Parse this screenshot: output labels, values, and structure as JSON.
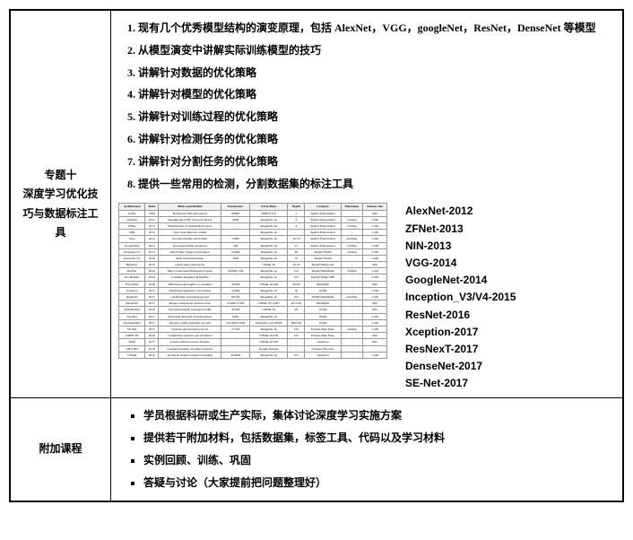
{
  "row1": {
    "leftTitle": "专题十\n深度学习优化技巧与数据标注工具",
    "items": [
      "现有几个优秀模型结构的演变原理，包括 AlexNet，VGG，googleNet，ResNet，DenseNet 等模型",
      "从模型演变中讲解实际训练模型的技巧",
      "讲解针对数据的优化策略",
      "讲解针对模型的优化策略",
      "讲解针对训练过程的优化策略",
      "讲解针对检测任务的优化策略",
      "讲解针对分割任务的优化策略",
      "提供一些常用的检测，分割数据集的标注工具"
    ],
    "miniTable": {
      "headers": [
        "Architecture",
        "Team",
        "Main contribution",
        "Parameters",
        "Error Rate",
        "Depth",
        "Category",
        "Placement",
        "Dataset size"
      ],
      "rows": [
        [
          "LeNet",
          "1998",
          "Backprop CNN introduced",
          "60000",
          "MNIST 0.8",
          "5",
          "Spatial Exploitation",
          "-",
          "60k"
        ],
        [
          "AlexNet",
          "2012",
          "Deep&wide CNN; Dropout; ReLU",
          "60M",
          "ImageNet-1k",
          "8",
          "Spatial Exploitation",
          "1st/Img",
          "1.2M"
        ],
        [
          "ZFNet",
          "2013",
          "Visualization of intermediate layers",
          "-",
          "ImageNet-1k",
          "8",
          "Spatial Exploitation",
          "1st/Img",
          "1.2M"
        ],
        [
          "NIN",
          "2013",
          "New layer mlpconv added",
          "-",
          "ImageNet-1k",
          "-",
          "Spatial Exploitation",
          "-",
          "1.2M"
        ],
        [
          "VGG",
          "2014",
          "Increased depth; small filter",
          "138M",
          "ImageNet-1k",
          "16-19",
          "Spatial Exploitation",
          "2nd/Img",
          "1.2M"
        ],
        [
          "GoogLeNet",
          "2014",
          "Increased Width; Inception",
          "4M",
          "ImageNet-1k",
          "22",
          "Spatial Exploitation",
          "1st/Img",
          "1.2M"
        ],
        [
          "Inception V3",
          "2015",
          "Small filter; better factorization",
          "23.6M",
          "ImageNet-1k",
          "48",
          "Depth+Width",
          "1st/Img",
          "1.2M"
        ],
        [
          "Inception V4",
          "2016",
          "Split transform merge",
          "35M",
          "ImageNet-1k",
          "70",
          "Depth+Width",
          "-",
          "1.2M"
        ],
        [
          "Highway",
          "2015",
          "Gated skip connections",
          "-",
          "CIFAR-10",
          "19-32",
          "Depth+SkipConn",
          "-",
          "60k"
        ],
        [
          "ResNet",
          "2016",
          "Skip Connections;Bottleneck layers",
          "25.6M/1.7M",
          "ImageNet-1k",
          "152",
          "Depth+MultiPath",
          "1st/Img",
          "1.2M"
        ],
        [
          "Inc-ResNet",
          "2016",
          "Combine Inception & ResNet",
          "-",
          "ImageNet-1k",
          "572",
          "Depth+Width+MP",
          "-",
          "1.2M"
        ],
        [
          "FractalNet",
          "2016",
          "Different path lengths; no residual",
          "38.6M",
          "CIFAR-10/100",
          "40-80",
          "MultiPath",
          "-",
          "60k"
        ],
        [
          "Xception",
          "2017",
          "Depthwise separable convolution",
          "22.8M",
          "ImageNet-1k",
          "36",
          "Width",
          "-",
          "1.2M"
        ],
        [
          "ResNeXt",
          "2017",
          "Cardinality; increasing groups",
          "68.1M",
          "ImageNet-1k",
          "101",
          "Width+MultiPath",
          "2nd/Img",
          "1.2M"
        ],
        [
          "DenseNet",
          "2017",
          "Dense connections; feature reuse",
          "25.6M/15.3M",
          "CIFAR-10+/100+",
          "201/100",
          "MultiPath",
          "-",
          "60k"
        ],
        [
          "WideResNet",
          "2016",
          "Decreased depth; increased width",
          "36.5M",
          "CIFAR-10",
          "28",
          "Width",
          "-",
          "60k"
        ],
        [
          "PolyNet",
          "2017",
          "Structural diversity; PolyInception",
          "92M",
          "ImageNet-1k",
          "-",
          "Width",
          "-",
          "1.2M"
        ],
        [
          "PyramidalNet",
          "2017",
          "Increase width gradually per unit",
          "116.4M/27.0M",
          "ImageNet-1k/CIFAR",
          "200/164",
          "Width",
          "-",
          "1.2M"
        ],
        [
          "SE-Net",
          "2017",
          "Squeeze and excitation block",
          "27.5M",
          "ImageNet-1k",
          "152",
          "Feature-Map Expl.",
          "1st/Img",
          "1.2M"
        ],
        [
          "CMPE-SE",
          "2018",
          "Competitive squeeze and excitation",
          "-",
          "CIFAR-10/100",
          "152",
          "Feature-Map Expl.",
          "-",
          "60k"
        ],
        [
          "RAN",
          "2017",
          "Learns attention aware features",
          "-",
          "CIFAR-10/100",
          "-",
          "Attention",
          "-",
          "60k"
        ],
        [
          "CB-CNN",
          "2018",
          "Channel boosting; auxiliary learners",
          "-",
          "Protein Dataset",
          "-",
          "Channel Boosted",
          "-",
          "-"
        ],
        [
          "CBAM",
          "2018",
          "Spatial & channel attention learning",
          "48.96M",
          "ImageNet-1k",
          "101",
          "Attention",
          "-",
          "1.2M"
        ]
      ]
    },
    "modelList": [
      "AlexNet-2012",
      "ZFNet-2013",
      "NIN-2013",
      "VGG-2014",
      "GoogleNet-2014",
      "Inception_V3/V4-2015",
      "ResNet-2016",
      "Xception-2017",
      "ResNexT-2017",
      "DenseNet-2017",
      "SE-Net-2017"
    ]
  },
  "row2": {
    "leftTitle": "附加课程",
    "items": [
      "学员根据科研或生产实际，集体讨论深度学习实施方案",
      "提供若干附加材料，包括数据集，标签工具、代码以及学习材料",
      "实例回顾、训练、巩固",
      "答疑与讨论（大家提前把问题整理好）"
    ]
  }
}
